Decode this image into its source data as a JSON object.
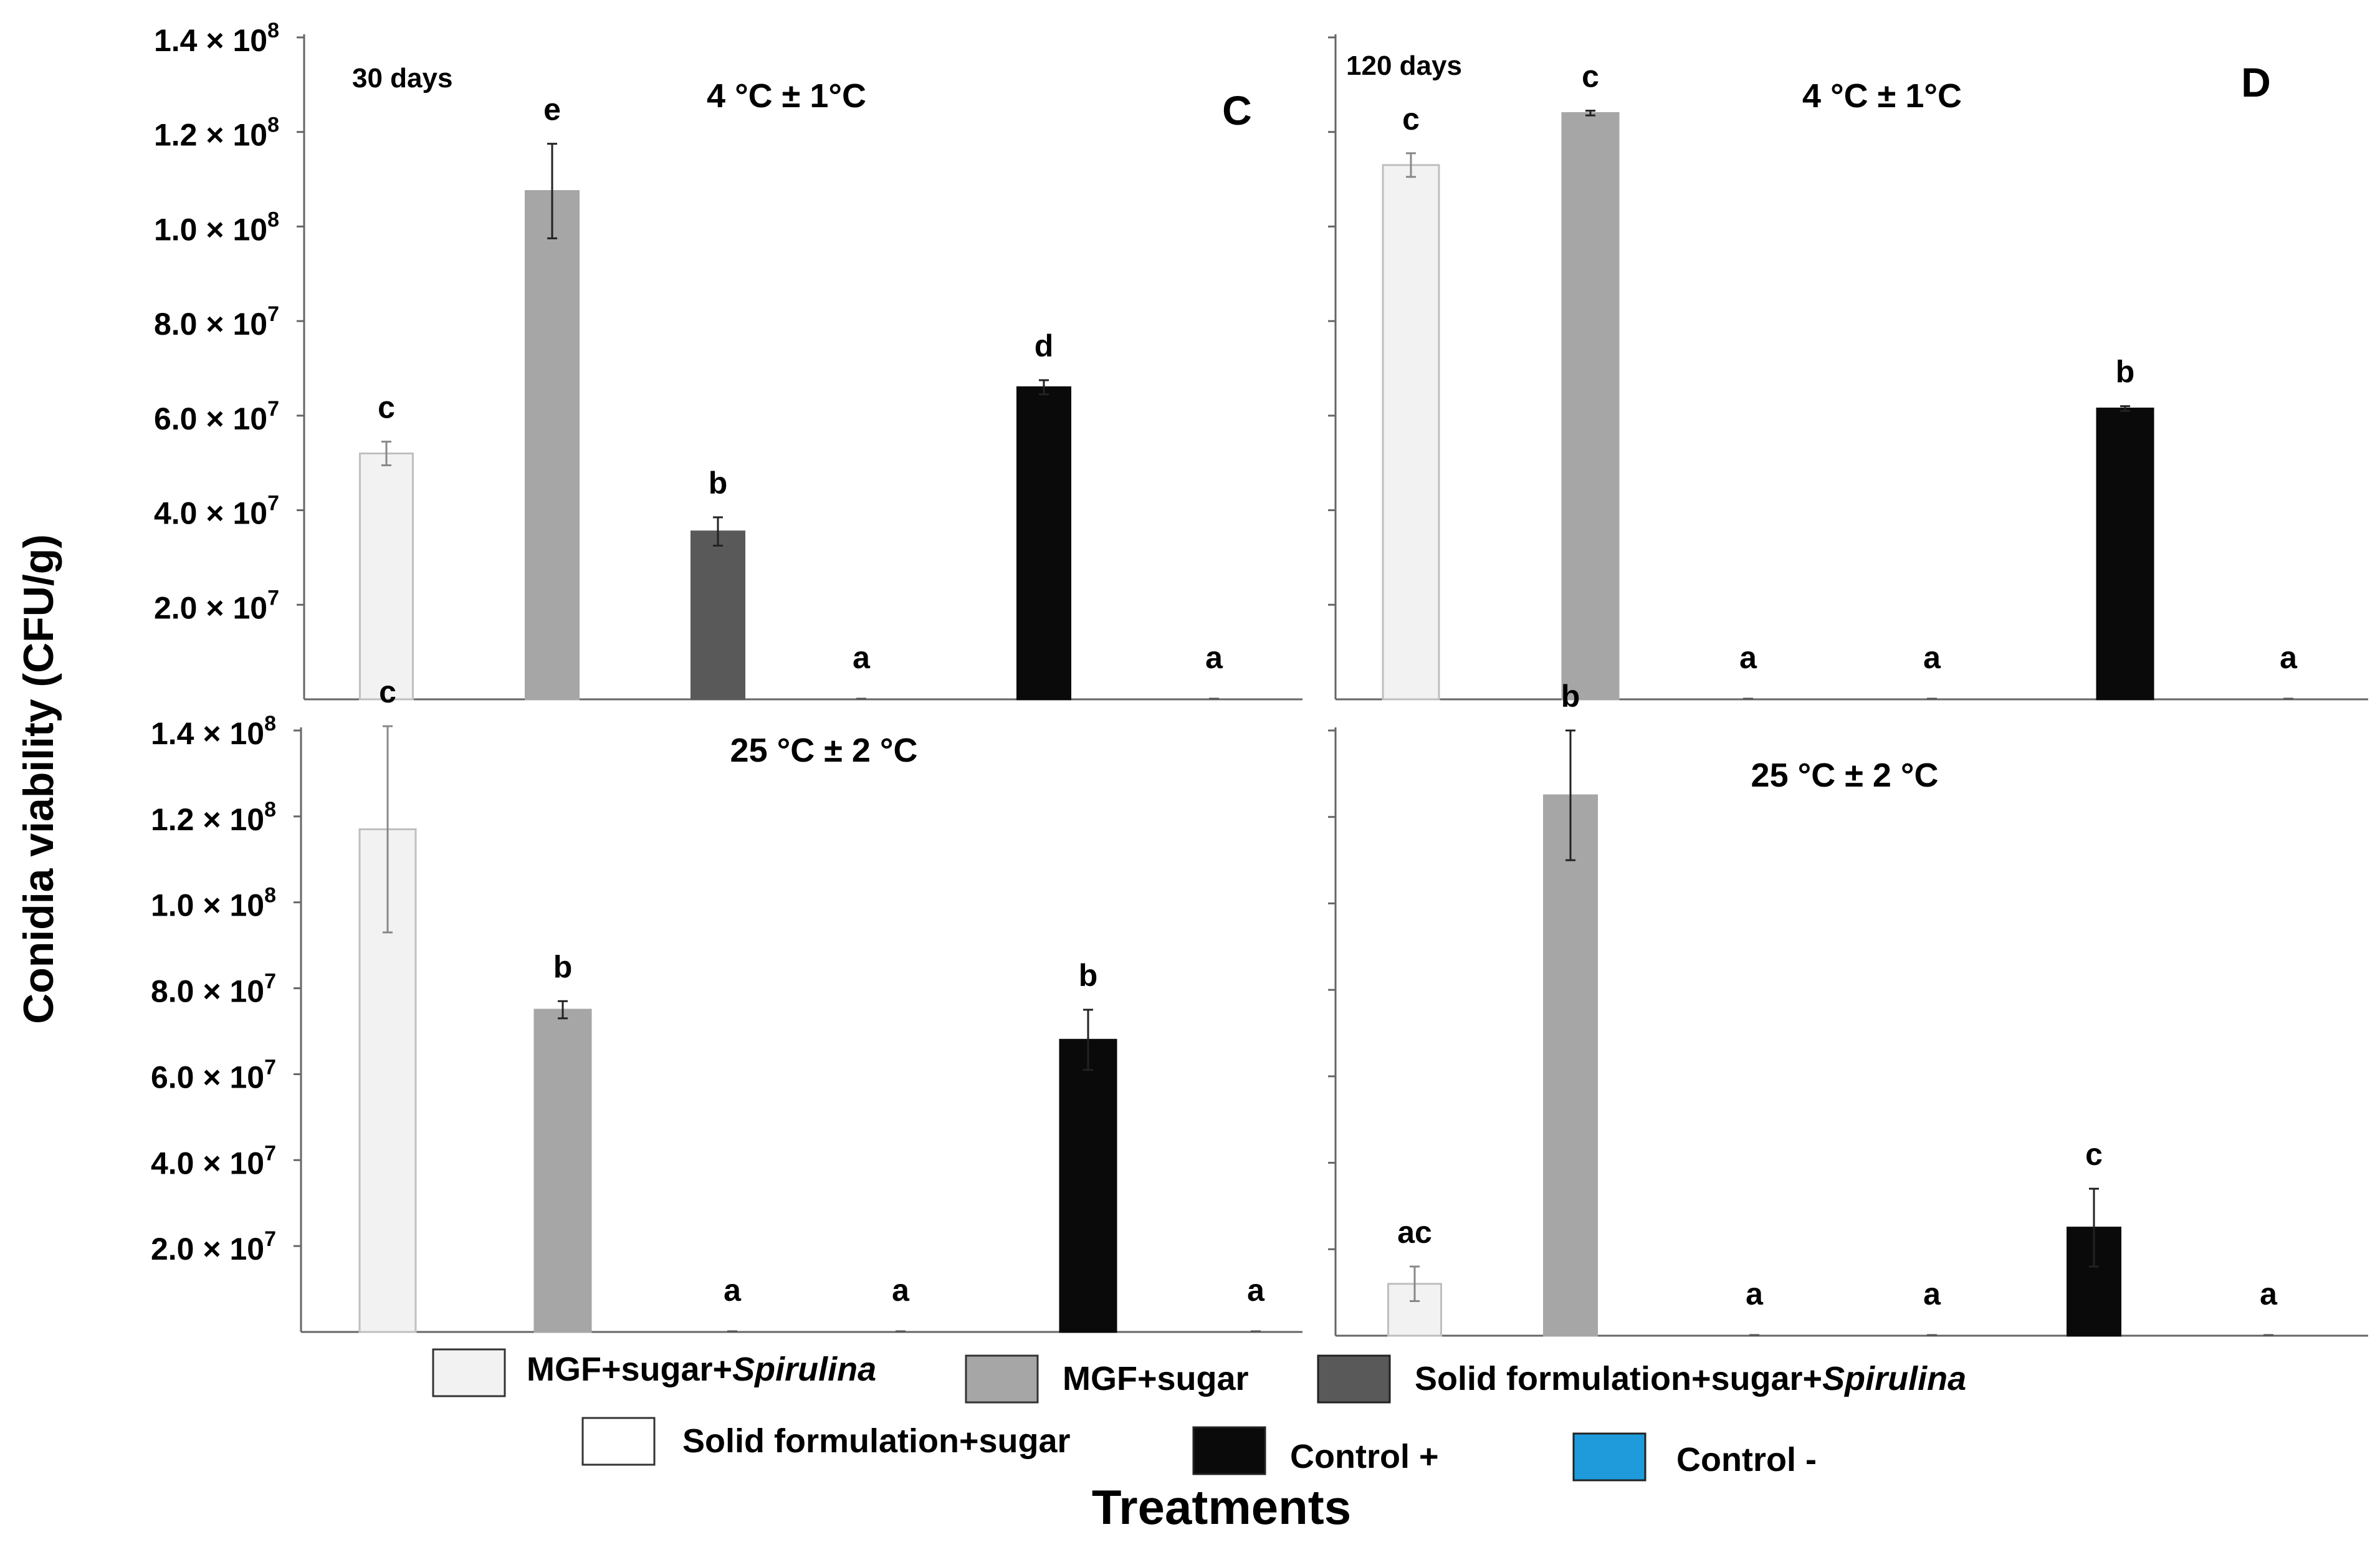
{
  "figure": {
    "y_axis_title": "Conidia viability (CFU/g)",
    "x_axis_title": "Treatments",
    "tick_base": "× 10",
    "treatments": [
      {
        "name": "MGF+sugar+",
        "name_italic": "Spirulina",
        "color": "#f2f2f2"
      },
      {
        "name": "MGF+sugar",
        "name_italic": "",
        "color": "#a6a6a6"
      },
      {
        "name": "Solid formulation+sugar+",
        "name_italic": "Spirulina",
        "color": "#595959"
      },
      {
        "name": "Solid formulation+sugar",
        "name_italic": "",
        "color": "#ffffff"
      },
      {
        "name": "Control +",
        "name_italic": "",
        "color": "#0a0a0a"
      },
      {
        "name": "Control -",
        "name_italic": "",
        "color": "#1f9bdb"
      }
    ]
  },
  "chart_data": [
    {
      "type": "bar",
      "panel_label": "C",
      "time_label": "30 days",
      "temperature": "4 °C ± 1°C",
      "categories": [
        "MGF+sugar+Spirulina",
        "MGF+sugar",
        "Solid formulation+sugar+Spirulina",
        "Solid formulation+sugar",
        "Control +",
        "Control -"
      ],
      "values": [
        52000000,
        107500000,
        35500000,
        0,
        66000000,
        0
      ],
      "errors": [
        2500000,
        10000000,
        3000000,
        0,
        1500000,
        0
      ],
      "letters": [
        "c",
        "e",
        "b",
        "a",
        "d",
        "a"
      ],
      "ylim": [
        0,
        140000000
      ],
      "yticks": [
        20000000,
        40000000,
        60000000,
        80000000,
        100000000,
        120000000,
        140000000
      ],
      "ytick_labels": [
        {
          "mantissa": "2.0",
          "exponent": "7"
        },
        {
          "mantissa": "4.0",
          "exponent": "7"
        },
        {
          "mantissa": "6.0",
          "exponent": "7"
        },
        {
          "mantissa": "8.0",
          "exponent": "7"
        },
        {
          "mantissa": "1.0",
          "exponent": "8"
        },
        {
          "mantissa": "1.2",
          "exponent": "8"
        },
        {
          "mantissa": "1.4",
          "exponent": "8"
        }
      ]
    },
    {
      "type": "bar",
      "panel_label": "D",
      "time_label": "120 days",
      "temperature": "4 °C ± 1°C",
      "categories": [
        "MGF+sugar+Spirulina",
        "MGF+sugar",
        "Solid formulation+sugar+Spirulina",
        "Solid formulation+sugar",
        "Control +",
        "Control -"
      ],
      "values": [
        113000000,
        124000000,
        0,
        0,
        61500000,
        0
      ],
      "errors": [
        2500000,
        500000,
        0,
        0,
        500000,
        0
      ],
      "letters": [
        "c",
        "c",
        "a",
        "a",
        "b",
        "a"
      ],
      "ylim": [
        0,
        140000000
      ],
      "yticks": [
        20000000,
        40000000,
        60000000,
        80000000,
        100000000,
        120000000,
        140000000
      ],
      "ytick_labels": []
    },
    {
      "type": "bar",
      "panel_label": "",
      "time_label": "",
      "temperature": "25 °C ± 2 °C",
      "categories": [
        "MGF+sugar+Spirulina",
        "MGF+sugar",
        "Solid formulation+sugar+Spirulina",
        "Solid formulation+sugar",
        "Control +",
        "Control -"
      ],
      "values": [
        117000000,
        75000000,
        0,
        0,
        68000000,
        0
      ],
      "errors": [
        24000000,
        2000000,
        0,
        0,
        7000000,
        0
      ],
      "letters": [
        "c",
        "b",
        "a",
        "a",
        "b",
        "a"
      ],
      "ylim": [
        0,
        140000000
      ],
      "yticks": [
        20000000,
        40000000,
        60000000,
        80000000,
        100000000,
        120000000,
        140000000
      ],
      "ytick_labels": [
        {
          "mantissa": "2.0",
          "exponent": "7"
        },
        {
          "mantissa": "4.0",
          "exponent": "7"
        },
        {
          "mantissa": "6.0",
          "exponent": "7"
        },
        {
          "mantissa": "8.0",
          "exponent": "7"
        },
        {
          "mantissa": "1.0",
          "exponent": "8"
        },
        {
          "mantissa": "1.2",
          "exponent": "8"
        },
        {
          "mantissa": "1.4",
          "exponent": "8"
        }
      ]
    },
    {
      "type": "bar",
      "panel_label": "",
      "time_label": "",
      "temperature": "25 °C ± 2 °C",
      "categories": [
        "MGF+sugar+Spirulina",
        "MGF+sugar",
        "Solid formulation+sugar+Spirulina",
        "Solid formulation+sugar",
        "Control +",
        "Control -"
      ],
      "values": [
        12000000,
        125000000,
        0,
        0,
        25000000,
        0
      ],
      "errors": [
        4000000,
        15000000,
        0,
        0,
        9000000,
        0
      ],
      "letters": [
        "ac",
        "b",
        "a",
        "a",
        "c",
        "a"
      ],
      "ylim": [
        0,
        140000000
      ],
      "yticks": [
        20000000,
        40000000,
        60000000,
        80000000,
        100000000,
        120000000,
        140000000
      ],
      "ytick_labels": []
    }
  ]
}
